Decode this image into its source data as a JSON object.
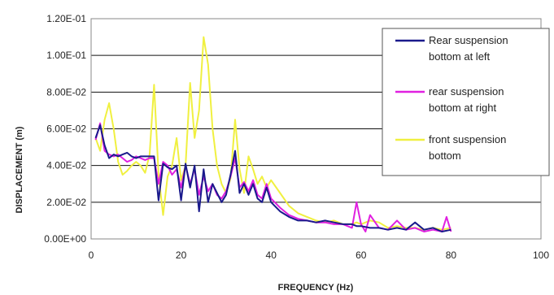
{
  "chart_data": {
    "type": "line",
    "title": "",
    "xlabel": "FREQUENCY (Hz)",
    "ylabel": "DISPLACEMENT (m)",
    "xlim": [
      0,
      100
    ],
    "ylim": [
      0,
      0.12
    ],
    "x_ticks": [
      0,
      20,
      40,
      60,
      80,
      100
    ],
    "x_tick_labels": [
      "0",
      "20",
      "40",
      "60",
      "80",
      "100"
    ],
    "y_ticks": [
      0,
      0.02,
      0.04,
      0.06,
      0.08,
      0.1,
      0.12
    ],
    "y_tick_labels": [
      "0.00E+00",
      "2.00E-02",
      "4.00E-02",
      "6.00E-02",
      "8.00E-02",
      "1.00E-01",
      "1.20E-01"
    ],
    "grid": "horizontal",
    "legend_position": "right",
    "series": [
      {
        "name": "Rear suspension bottom at left",
        "color": "#1a1a8c",
        "x": [
          1,
          2,
          3,
          4,
          5,
          6,
          7,
          8,
          9,
          10,
          11,
          12,
          13,
          14,
          15,
          16,
          17,
          18,
          19,
          20,
          21,
          22,
          23,
          24,
          25,
          26,
          27,
          28,
          29,
          30,
          31,
          32,
          33,
          34,
          35,
          36,
          37,
          38,
          39,
          40,
          42,
          44,
          46,
          48,
          50,
          52,
          54,
          56,
          58,
          59,
          60,
          62,
          64,
          66,
          68,
          70,
          72,
          74,
          76,
          78,
          80
        ],
        "values": [
          0.055,
          0.062,
          0.051,
          0.044,
          0.046,
          0.045,
          0.046,
          0.047,
          0.045,
          0.044,
          0.045,
          0.045,
          0.045,
          0.045,
          0.021,
          0.041,
          0.039,
          0.038,
          0.04,
          0.021,
          0.041,
          0.028,
          0.04,
          0.015,
          0.038,
          0.02,
          0.03,
          0.025,
          0.02,
          0.024,
          0.035,
          0.048,
          0.025,
          0.03,
          0.024,
          0.03,
          0.022,
          0.02,
          0.028,
          0.02,
          0.015,
          0.012,
          0.01,
          0.01,
          0.009,
          0.01,
          0.009,
          0.008,
          0.008,
          0.007,
          0.007,
          0.006,
          0.006,
          0.005,
          0.006,
          0.005,
          0.009,
          0.005,
          0.006,
          0.004,
          0.005
        ]
      },
      {
        "name": "rear suspension bottom at right",
        "color": "#e020e0",
        "x": [
          1,
          2,
          3,
          4,
          5,
          6,
          7,
          8,
          9,
          10,
          11,
          12,
          13,
          14,
          15,
          16,
          17,
          18,
          19,
          20,
          21,
          22,
          23,
          24,
          25,
          26,
          27,
          28,
          29,
          30,
          31,
          32,
          33,
          34,
          35,
          36,
          37,
          38,
          39,
          40,
          42,
          44,
          46,
          48,
          50,
          52,
          54,
          56,
          58,
          59,
          60,
          61,
          62,
          64,
          66,
          68,
          70,
          72,
          74,
          76,
          78,
          79,
          80
        ],
        "values": [
          0.054,
          0.063,
          0.048,
          0.046,
          0.045,
          0.046,
          0.044,
          0.042,
          0.043,
          0.045,
          0.044,
          0.043,
          0.044,
          0.044,
          0.03,
          0.042,
          0.04,
          0.035,
          0.038,
          0.028,
          0.04,
          0.03,
          0.038,
          0.024,
          0.034,
          0.026,
          0.03,
          0.024,
          0.022,
          0.026,
          0.034,
          0.044,
          0.028,
          0.031,
          0.026,
          0.032,
          0.024,
          0.022,
          0.03,
          0.022,
          0.017,
          0.013,
          0.011,
          0.01,
          0.009,
          0.009,
          0.008,
          0.008,
          0.006,
          0.02,
          0.008,
          0.004,
          0.013,
          0.006,
          0.005,
          0.01,
          0.005,
          0.006,
          0.004,
          0.005,
          0.004,
          0.012,
          0.004
        ]
      },
      {
        "name": "front suspension bottom",
        "color": "#f0f040",
        "x": [
          1,
          2,
          3,
          4,
          5,
          6,
          7,
          8,
          9,
          10,
          11,
          12,
          13,
          14,
          15,
          16,
          17,
          18,
          19,
          20,
          21,
          22,
          23,
          24,
          25,
          26,
          27,
          28,
          29,
          30,
          31,
          32,
          33,
          34,
          35,
          36,
          37,
          38,
          39,
          40,
          42,
          44,
          46,
          48,
          50,
          52,
          54,
          56,
          58,
          59,
          60,
          62,
          64,
          66,
          68,
          70,
          72,
          74,
          76,
          78,
          80
        ],
        "values": [
          0.055,
          0.048,
          0.065,
          0.074,
          0.06,
          0.042,
          0.035,
          0.037,
          0.04,
          0.042,
          0.04,
          0.036,
          0.046,
          0.084,
          0.035,
          0.013,
          0.034,
          0.04,
          0.055,
          0.032,
          0.04,
          0.085,
          0.055,
          0.07,
          0.11,
          0.095,
          0.06,
          0.04,
          0.03,
          0.025,
          0.033,
          0.065,
          0.038,
          0.025,
          0.045,
          0.038,
          0.03,
          0.034,
          0.028,
          0.032,
          0.025,
          0.018,
          0.014,
          0.012,
          0.01,
          0.009,
          0.01,
          0.008,
          0.008,
          0.009,
          0.008,
          0.01,
          0.009,
          0.006,
          0.007,
          0.006,
          0.006,
          0.005,
          0.006,
          0.005,
          0.006
        ]
      }
    ]
  }
}
